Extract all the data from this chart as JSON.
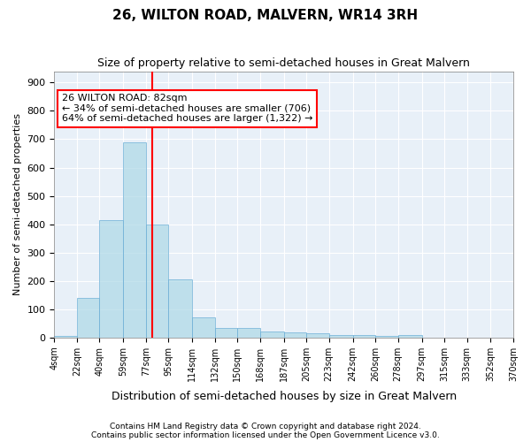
{
  "title": "26, WILTON ROAD, MALVERN, WR14 3RH",
  "subtitle": "Size of property relative to semi-detached houses in Great Malvern",
  "xlabel": "Distribution of semi-detached houses by size in Great Malvern",
  "ylabel": "Number of semi-detached properties",
  "bar_color": "#add8e6",
  "bar_edge_color": "#6baed6",
  "bar_alpha": 0.7,
  "property_line_color": "red",
  "property_sqm": 82,
  "annotation_text": "26 WILTON ROAD: 82sqm\n← 34% of semi-detached houses are smaller (706)\n64% of semi-detached houses are larger (1,322) →",
  "footer1": "Contains HM Land Registry data © Crown copyright and database right 2024.",
  "footer2": "Contains public sector information licensed under the Open Government Licence v3.0.",
  "bin_edges": [
    4,
    22,
    40,
    59,
    77,
    95,
    114,
    132,
    150,
    168,
    187,
    205,
    223,
    242,
    260,
    278,
    297,
    315,
    333,
    352,
    370
  ],
  "bin_labels": [
    "4sqm",
    "22sqm",
    "40sqm",
    "59sqm",
    "77sqm",
    "95sqm",
    "114sqm",
    "132sqm",
    "150sqm",
    "168sqm",
    "187sqm",
    "205sqm",
    "223sqm",
    "242sqm",
    "260sqm",
    "278sqm",
    "297sqm",
    "315sqm",
    "333sqm",
    "352sqm",
    "370sqm"
  ],
  "bar_heights": [
    5,
    140,
    415,
    690,
    400,
    205,
    70,
    35,
    35,
    22,
    18,
    15,
    10,
    10,
    5,
    10,
    0,
    0,
    0,
    0
  ],
  "ylim": [
    0,
    940
  ],
  "yticks": [
    0,
    100,
    200,
    300,
    400,
    500,
    600,
    700,
    800,
    900
  ],
  "bg_color": "#e8f0f8"
}
